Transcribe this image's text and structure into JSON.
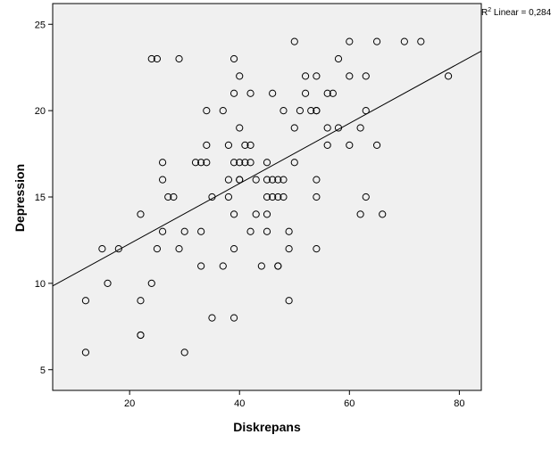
{
  "chart_data": {
    "type": "scatter",
    "xlabel": "Diskrepans",
    "ylabel": "Depression",
    "xlim": [
      6,
      84
    ],
    "ylim": [
      3.8,
      26.2
    ],
    "x_ticks": [
      20,
      40,
      60,
      80
    ],
    "y_ticks": [
      5,
      10,
      15,
      20,
      25
    ],
    "grid": false,
    "background": "#f0f0f0",
    "point_color": "#000000",
    "fit_line": {
      "label_prefix": "R",
      "label_sup": "2",
      "label_suffix": " Linear = 0,284",
      "x": [
        6,
        84
      ],
      "y": [
        9.85,
        23.45
      ]
    },
    "points": [
      [
        12,
        6
      ],
      [
        12,
        9
      ],
      [
        15,
        12
      ],
      [
        16,
        10
      ],
      [
        18,
        12
      ],
      [
        22,
        7
      ],
      [
        22,
        7
      ],
      [
        22,
        9
      ],
      [
        22,
        14
      ],
      [
        24,
        10
      ],
      [
        24,
        23
      ],
      [
        25,
        12
      ],
      [
        25,
        23
      ],
      [
        26,
        13
      ],
      [
        26,
        16
      ],
      [
        26,
        17
      ],
      [
        27,
        15
      ],
      [
        28,
        15
      ],
      [
        29,
        12
      ],
      [
        29,
        23
      ],
      [
        30,
        6
      ],
      [
        30,
        13
      ],
      [
        32,
        17
      ],
      [
        33,
        11
      ],
      [
        33,
        13
      ],
      [
        33,
        17
      ],
      [
        34,
        17
      ],
      [
        34,
        18
      ],
      [
        34,
        20
      ],
      [
        35,
        8
      ],
      [
        35,
        15
      ],
      [
        37,
        11
      ],
      [
        37,
        20
      ],
      [
        38,
        15
      ],
      [
        38,
        16
      ],
      [
        38,
        18
      ],
      [
        39,
        8
      ],
      [
        39,
        12
      ],
      [
        39,
        14
      ],
      [
        39,
        17
      ],
      [
        39,
        21
      ],
      [
        39,
        23
      ],
      [
        40,
        16
      ],
      [
        40,
        16
      ],
      [
        40,
        17
      ],
      [
        40,
        19
      ],
      [
        40,
        22
      ],
      [
        41,
        17
      ],
      [
        41,
        18
      ],
      [
        42,
        13
      ],
      [
        42,
        17
      ],
      [
        42,
        18
      ],
      [
        42,
        21
      ],
      [
        43,
        14
      ],
      [
        43,
        16
      ],
      [
        44,
        11
      ],
      [
        45,
        13
      ],
      [
        45,
        14
      ],
      [
        45,
        15
      ],
      [
        45,
        16
      ],
      [
        45,
        17
      ],
      [
        46,
        15
      ],
      [
        46,
        16
      ],
      [
        46,
        21
      ],
      [
        47,
        11
      ],
      [
        47,
        11
      ],
      [
        47,
        15
      ],
      [
        47,
        16
      ],
      [
        48,
        15
      ],
      [
        48,
        16
      ],
      [
        48,
        20
      ],
      [
        49,
        9
      ],
      [
        49,
        12
      ],
      [
        49,
        13
      ],
      [
        50,
        17
      ],
      [
        50,
        19
      ],
      [
        50,
        24
      ],
      [
        51,
        20
      ],
      [
        52,
        21
      ],
      [
        52,
        22
      ],
      [
        53,
        20
      ],
      [
        54,
        15
      ],
      [
        54,
        16
      ],
      [
        54,
        20
      ],
      [
        54,
        20
      ],
      [
        54,
        22
      ],
      [
        54,
        12
      ],
      [
        56,
        18
      ],
      [
        56,
        19
      ],
      [
        56,
        21
      ],
      [
        57,
        21
      ],
      [
        58,
        19
      ],
      [
        58,
        23
      ],
      [
        60,
        18
      ],
      [
        60,
        22
      ],
      [
        60,
        24
      ],
      [
        62,
        14
      ],
      [
        62,
        19
      ],
      [
        63,
        15
      ],
      [
        63,
        20
      ],
      [
        63,
        22
      ],
      [
        65,
        18
      ],
      [
        65,
        24
      ],
      [
        66,
        14
      ],
      [
        70,
        24
      ],
      [
        73,
        24
      ],
      [
        78,
        22
      ]
    ]
  }
}
